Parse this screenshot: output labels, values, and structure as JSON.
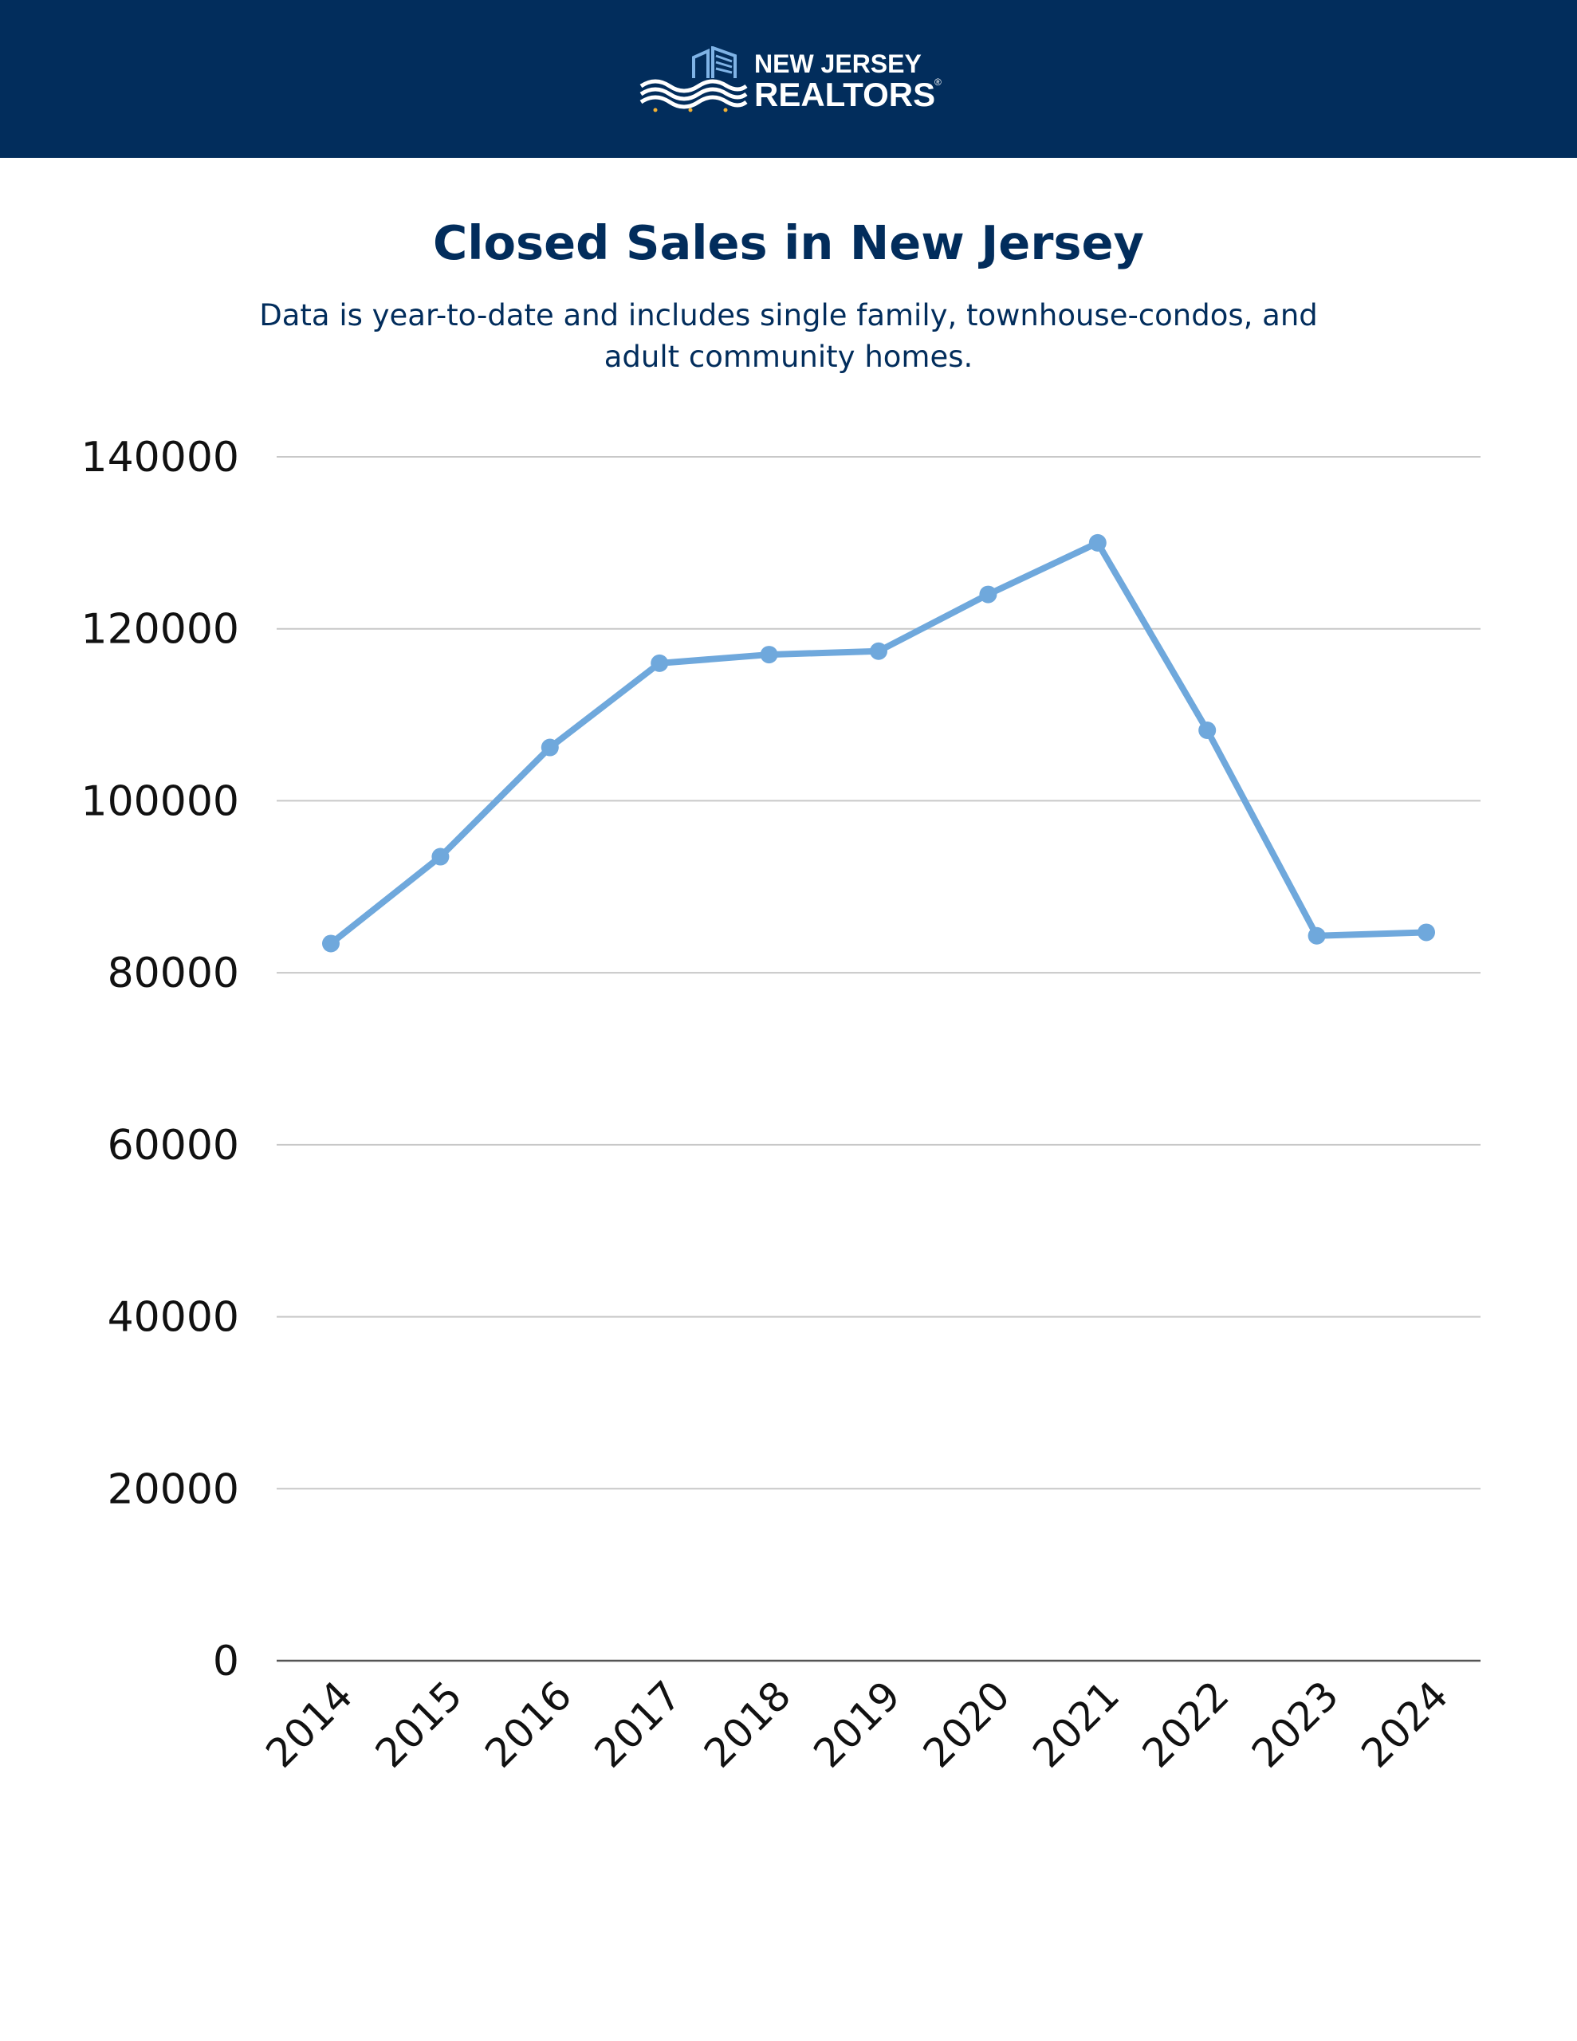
{
  "header": {
    "brand_line1": "NEW JERSEY",
    "brand_line2": "REALTORS",
    "brand_mark": "®",
    "logo_icon": "building-waves-logo-icon",
    "background_color": "#022d5c"
  },
  "chart_data": {
    "type": "line",
    "title": "Closed Sales in New Jersey",
    "subtitle": "Data is year-to-date and includes single family, townhouse-condos, and adult community homes.",
    "xlabel": "",
    "ylabel": "",
    "categories": [
      "2014",
      "2015",
      "2016",
      "2017",
      "2018",
      "2019",
      "2020",
      "2021",
      "2022",
      "2023",
      "2024"
    ],
    "series": [
      {
        "values": [
          83400,
          93500,
          106200,
          116000,
          117000,
          117400,
          124000,
          130000,
          108200,
          84300,
          84700
        ],
        "color": "#6fa8dc"
      }
    ],
    "ylim": [
      0,
      140000
    ],
    "yticks": [
      "0",
      "20000",
      "40000",
      "60000",
      "80000",
      "100000",
      "120000",
      "140000"
    ],
    "grid": true,
    "legend": "none",
    "x_tick_rotation": "-45deg"
  }
}
